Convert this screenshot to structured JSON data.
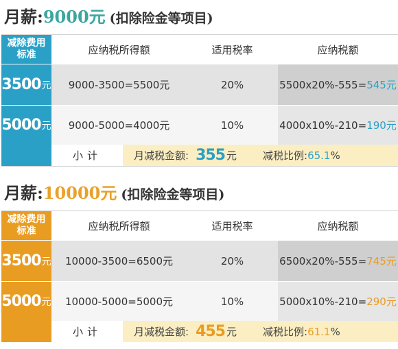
{
  "sections": [
    {
      "heading": {
        "label": "月薪",
        "colon": ":",
        "amount": "9000元",
        "note": "(扣除险金等项目)"
      },
      "columns": {
        "std": "减除费用标准",
        "std_line1": "减除费用",
        "std_line2": "标准",
        "taxable": "应纳税所得额",
        "rate": "适用税率",
        "tax": "应纳税额"
      },
      "rows": [
        {
          "std_num": "3500",
          "std_unit": "元",
          "taxable": "9000-3500=5500元",
          "rate": "20%",
          "tax_formula": "5500x20%-555=",
          "tax_value": "545元"
        },
        {
          "std_num": "5000",
          "std_unit": "元",
          "taxable": "9000-5000=4000元",
          "rate": "10%",
          "tax_formula": "4000x10%-210=",
          "tax_value": "190元"
        }
      ],
      "summary": {
        "label": "小计",
        "reduction_label": "月减税金额:",
        "reduction_value": "355",
        "reduction_unit": "元",
        "ratio_label": "减税比例:",
        "ratio_value": "65.1",
        "ratio_unit": "%"
      }
    },
    {
      "heading": {
        "label": "月薪",
        "colon": ":",
        "amount": "10000元",
        "note": "(扣除险金等项目)"
      },
      "columns": {
        "std": "减除费用标准",
        "std_line1": "减除费用",
        "std_line2": "标准",
        "taxable": "应纳税所得额",
        "rate": "适用税率",
        "tax": "应纳税额"
      },
      "rows": [
        {
          "std_num": "3500",
          "std_unit": "元",
          "taxable": "10000-3500=6500元",
          "rate": "20%",
          "tax_formula": "6500x20%-555=",
          "tax_value": "745元"
        },
        {
          "std_num": "5000",
          "std_unit": "元",
          "taxable": "10000-5000=5000元",
          "rate": "10%",
          "tax_formula": "5000x10%-210=",
          "tax_value": "290元"
        }
      ],
      "summary": {
        "label": "小计",
        "reduction_label": "月减税金额:",
        "reduction_value": "455",
        "reduction_unit": "元",
        "ratio_label": "减税比例:",
        "ratio_value": "61.1",
        "ratio_unit": "%"
      }
    }
  ],
  "colors": {
    "teal": "#2aa0c7",
    "orange": "#e99c22",
    "summary_bg": "#fbeec2",
    "heading_teal": "#3aa69f"
  }
}
